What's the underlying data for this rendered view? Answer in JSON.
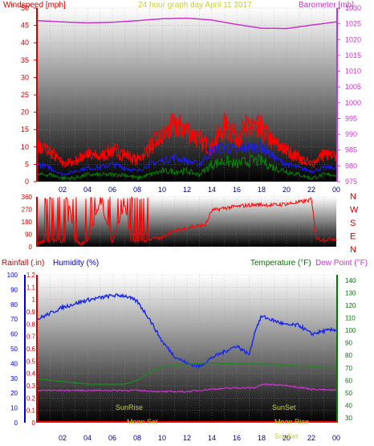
{
  "header": {
    "windspeed_label": "Windspeed [mph]",
    "title": "24 hour graph day   April 11 2017",
    "barometer_label": "Barometer [mb]"
  },
  "colors": {
    "wind": "#ff0000",
    "wind_avg": "#1a1aff",
    "wind_low": "#008800",
    "barometer": "#cc33cc",
    "direction": "#ff0000",
    "humidity": "#1f2fe0",
    "temperature": "#1e8a1e",
    "dewpoint": "#cc33cc",
    "rain": "#ff0000",
    "sun": "#cccc33",
    "axis_red": "#cc0000",
    "axis_blue": "#0000cc",
    "axis_green": "#007700",
    "axis_magenta": "#cc33cc"
  },
  "x_ticks": [
    "02",
    "04",
    "06",
    "08",
    "10",
    "12",
    "14",
    "16",
    "18",
    "20",
    "22",
    "00"
  ],
  "chart_data": [
    {
      "type": "line",
      "panel": "wind_barometer",
      "y_left_ticks": [
        "0",
        "5",
        "10",
        "15",
        "20",
        "25",
        "30",
        "35",
        "40",
        "45",
        "50"
      ],
      "y_right_ticks": [
        "975",
        "980",
        "985",
        "990",
        "995",
        "1000",
        "1005",
        "1010",
        "1015",
        "1020",
        "1025",
        "1030"
      ],
      "y_left_range": [
        0,
        50
      ],
      "y_right_range": [
        975,
        1030
      ],
      "series": [
        {
          "kind": "barometer",
          "hours": [
            0,
            2,
            4,
            6,
            8,
            10,
            12,
            14,
            16,
            18,
            20,
            22,
            24
          ],
          "values": [
            1026,
            1025.6,
            1025.3,
            1025.5,
            1026,
            1026.6,
            1026.8,
            1026.2,
            1024.8,
            1023.6,
            1023.5,
            1024.6,
            1025.6
          ]
        },
        {
          "kind": "gust",
          "hours": [
            0,
            1,
            2,
            3,
            4,
            5,
            6,
            7,
            8,
            9,
            10,
            11,
            12,
            13,
            14,
            15,
            16,
            17,
            18,
            19,
            20,
            21,
            22,
            23,
            24
          ],
          "values": [
            10,
            9,
            5,
            6,
            8,
            7,
            9,
            8,
            6,
            10,
            13,
            16,
            15,
            12,
            10,
            16,
            13,
            16,
            15,
            11,
            9,
            7,
            5,
            8,
            7
          ]
        },
        {
          "kind": "average",
          "hours": [
            0,
            1,
            2,
            3,
            4,
            5,
            6,
            7,
            8,
            9,
            10,
            11,
            12,
            13,
            14,
            15,
            16,
            17,
            18,
            19,
            20,
            21,
            22,
            23,
            24
          ],
          "values": [
            5,
            4,
            2,
            3,
            4,
            4,
            5,
            4,
            3,
            5,
            6,
            7,
            6,
            5,
            9,
            10,
            9,
            10,
            10,
            7,
            5,
            4,
            3,
            4,
            4
          ]
        },
        {
          "kind": "low",
          "hours": [
            0,
            1,
            2,
            3,
            4,
            5,
            6,
            7,
            8,
            9,
            10,
            11,
            12,
            13,
            14,
            15,
            16,
            17,
            18,
            19,
            20,
            21,
            22,
            23,
            24
          ],
          "values": [
            2,
            2,
            1,
            1,
            2,
            2,
            2,
            2,
            1,
            2,
            3,
            3,
            3,
            2,
            5,
            6,
            5,
            6,
            6,
            4,
            3,
            2,
            1,
            2,
            2
          ]
        }
      ]
    },
    {
      "type": "line",
      "panel": "wind_direction",
      "y_ticks": [
        "360",
        "270",
        "180",
        "90",
        "0"
      ],
      "y_right_labels": [
        "N",
        "W",
        "S",
        "E",
        "N"
      ],
      "y_range": [
        0,
        360
      ],
      "series": [
        {
          "kind": "direction",
          "hours": [
            0,
            0.6,
            1.5,
            2.4,
            2.5,
            3.0,
            3.4,
            4.0,
            5.0,
            6.0,
            7.0,
            7.5,
            7.7,
            8.5,
            9.0,
            10.0,
            10.5,
            11.0,
            12.0,
            13.0,
            13.5,
            14.0,
            15.0,
            16.0,
            17.0,
            18.0,
            19.0,
            20.0,
            21.0,
            22.0,
            22.4,
            23.0,
            24.0
          ],
          "values": [
            30,
            35,
            40,
            30,
            320,
            40,
            20,
            30,
            320,
            30,
            310,
            30,
            30,
            40,
            60,
            60,
            100,
            110,
            140,
            150,
            160,
            260,
            280,
            290,
            300,
            305,
            300,
            310,
            320,
            340,
            60,
            50,
            60
          ]
        }
      ]
    },
    {
      "type": "line",
      "panel": "rain_humidity_temperature",
      "rain_label": "Rainfall (.in)",
      "humidity_label": "Humidity (%)",
      "temperature_label": "Temperature (°F)",
      "dewpoint_label": "Dew Point (°F)",
      "y_rain_ticks": [
        "0",
        "0.1",
        "0.2",
        "0.3",
        "0.4",
        "0.5",
        "0.6",
        "0.7",
        "0.8",
        "0.9",
        "1",
        "1.1",
        "1.2"
      ],
      "y_humidity_ticks": [
        "0",
        "10",
        "20",
        "30",
        "40",
        "50",
        "60",
        "70",
        "80",
        "90",
        "100"
      ],
      "y_temp_ticks": [
        "30",
        "40",
        "50",
        "60",
        "70",
        "80",
        "90",
        "100",
        "110",
        "120",
        "130",
        "140"
      ],
      "y_rain_range": [
        0,
        1.2
      ],
      "y_humidity_range": [
        0,
        100
      ],
      "y_temp_range": [
        30,
        140
      ],
      "sun_moon": {
        "sunrise": "SunRise",
        "sunset": "SunSet",
        "moonset": "Moon Set",
        "moonrise": "Moon Rise",
        "sunset_bottom": "SunSet"
      },
      "series": [
        {
          "kind": "humidity",
          "hours": [
            0,
            1,
            2,
            4,
            6,
            7,
            8,
            9,
            10,
            11,
            12,
            13,
            14,
            15,
            16,
            17,
            17.5,
            18,
            19,
            20,
            21,
            22,
            23,
            24
          ],
          "values": [
            70,
            74,
            78,
            83,
            86,
            86,
            82,
            70,
            55,
            45,
            40,
            38,
            44,
            48,
            52,
            46,
            63,
            72,
            69,
            66,
            66,
            60,
            62,
            63
          ]
        },
        {
          "kind": "temperature",
          "hours": [
            0,
            1,
            2,
            4,
            6,
            7,
            8,
            9,
            10,
            12,
            14,
            16,
            18,
            20,
            22,
            24
          ],
          "values": [
            61,
            60,
            59,
            57,
            57,
            57,
            60,
            66,
            71,
            73,
            74,
            73,
            73,
            72,
            71,
            70
          ]
        },
        {
          "kind": "dewpoint",
          "hours": [
            0,
            2,
            4,
            6,
            8,
            10,
            12,
            14,
            16,
            17.5,
            18,
            20,
            22,
            24
          ],
          "values": [
            52,
            52,
            52,
            52,
            52,
            51,
            51,
            53,
            54,
            54,
            57,
            56,
            53,
            52
          ]
        },
        {
          "kind": "rain",
          "hours": [
            0,
            24
          ],
          "values": [
            0,
            0
          ]
        }
      ]
    }
  ]
}
